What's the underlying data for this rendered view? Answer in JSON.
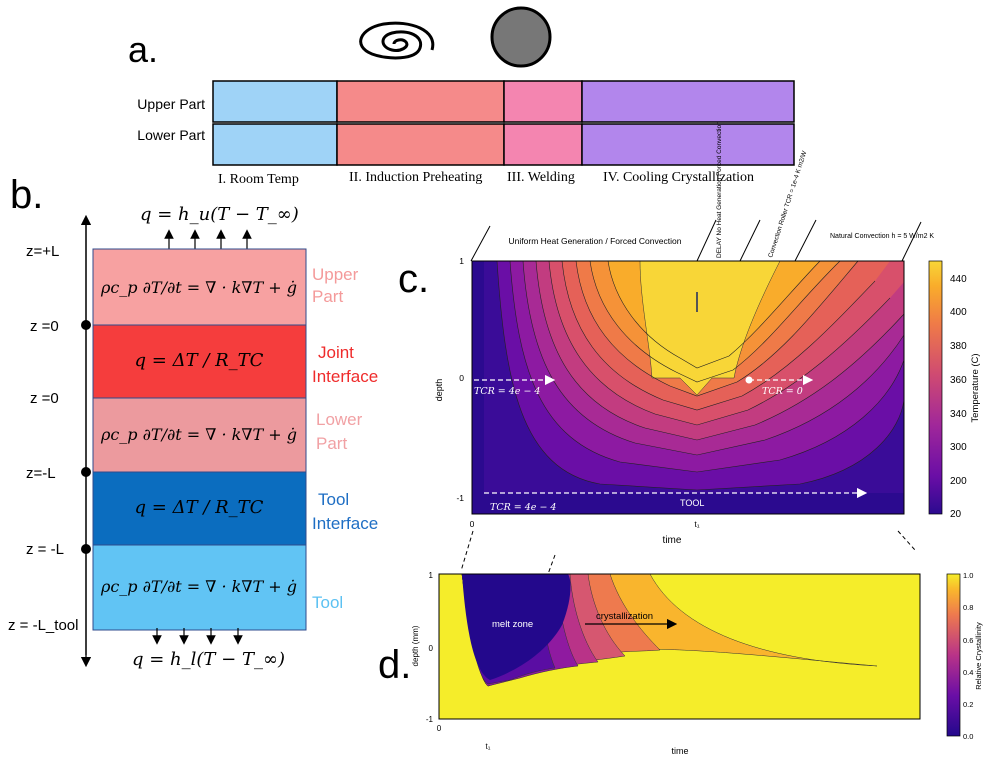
{
  "panel_a": {
    "letter": "a.",
    "row_labels": [
      "Upper Part",
      "Lower Part"
    ],
    "stages": [
      {
        "label": "I. Room Temp",
        "color": "#9fd3f7"
      },
      {
        "label": "II. Induction Preheating",
        "color": "#f58a8a"
      },
      {
        "label": "III. Welding",
        "color": "#f485b0"
      },
      {
        "label": "IV. Cooling Crystallization",
        "color": "#b286ec"
      }
    ]
  },
  "panel_b": {
    "letter": "b.",
    "top_flux": "q = h_u(T − T_∞)",
    "bottom_flux": "q = h_l(T − T_∞)",
    "layers": [
      {
        "eq": "ρc_p ∂T/∂t = ∇ · k∇T + ġ",
        "label_line1": "Upper",
        "label_line2": "Part",
        "fill": "#f7a1a1",
        "label_color": "#f49a9a"
      },
      {
        "eq": "q = ΔT / R_TC",
        "label_line1": "Joint",
        "label_line2": "Interface",
        "fill": "#f53d3d",
        "label_color": "#ef2b2b"
      },
      {
        "eq": "ρc_p ∂T/∂t = ∇ · k∇T + ġ",
        "label_line1": "Lower",
        "label_line2": "Part",
        "fill": "#ec9a9e",
        "label_color": "#f1a1a4"
      },
      {
        "eq": "q = ΔT / R_TC",
        "label_line1": "Tool",
        "label_line2": "Interface",
        "fill": "#0b6dbf",
        "label_color": "#1e6ec4"
      },
      {
        "eq": "ρc_p ∂T/∂t = ∇ · k∇T + ġ",
        "label_line1": "Tool",
        "label_line2": "",
        "fill": "#61c4f4",
        "label_color": "#5cc1f2"
      }
    ],
    "z_labels": [
      "z=+L",
      "z =0",
      "z =0",
      "z=-L",
      "z = -L",
      "z = -L_tool"
    ]
  },
  "panel_c": {
    "letter": "c.",
    "phase_labels": [
      "Uniform Heat Generation / Forced Convection",
      "DELAY No Heat Generation Forced Convection",
      "Convection Roller TCR = 1e-4 K m2/W",
      "Natural Convection h = 5 W/m2 K"
    ],
    "ylabel": "depth",
    "xlabel": "time",
    "yticks": [
      "1",
      "0",
      "-1"
    ],
    "xticks": [
      "0",
      "t₁"
    ],
    "annotations": [
      "TCR = 4e − 4",
      "TCR = 0",
      "TCR = 4e − 4",
      "TOOL"
    ],
    "colorbar": {
      "label": "Temperature (C)",
      "ticks": [
        "440",
        "400",
        "380",
        "360",
        "340",
        "300",
        "200",
        "20"
      ]
    }
  },
  "panel_d": {
    "letter": "d.",
    "ylabel": "depth (mm)",
    "xlabel": "time",
    "yticks": [
      "1",
      "0",
      "-1"
    ],
    "xticks": [
      "0",
      "t₁"
    ],
    "annotations": [
      "melt zone",
      "crystallization"
    ],
    "colorbar": {
      "label": "Relative Crystallinity",
      "ticks": [
        "1.0",
        "0.8",
        "0.6",
        "0.4",
        "0.2",
        "0.0"
      ]
    }
  }
}
